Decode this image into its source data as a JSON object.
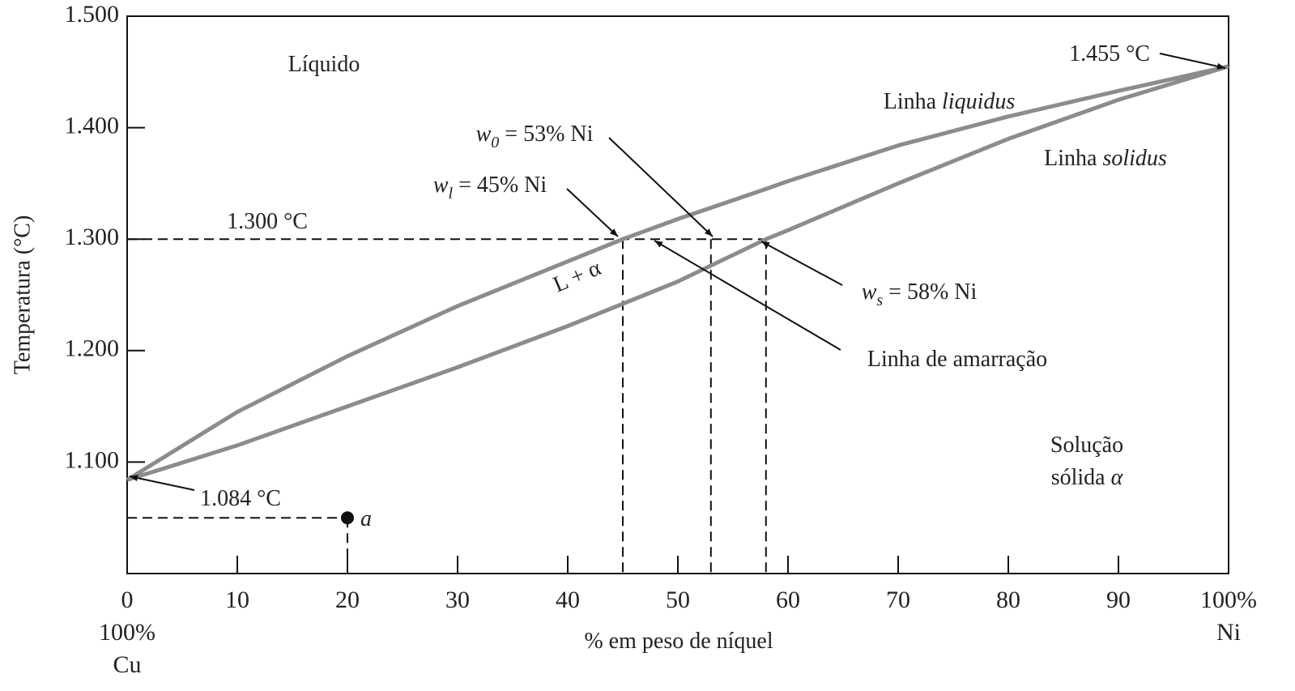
{
  "chart_data": {
    "type": "line",
    "ylabel": "Temperatura (°C)",
    "xlabel": "% em peso de níquel",
    "xlim": [
      0,
      100
    ],
    "ylim": [
      1000,
      1500
    ],
    "xticks": [
      0,
      10,
      20,
      30,
      40,
      50,
      60,
      70,
      80,
      90,
      {
        "value": 100,
        "label": "100%"
      }
    ],
    "yticks": [
      {
        "value": 1100,
        "label": "1.100"
      },
      {
        "value": 1200,
        "label": "1.200"
      },
      {
        "value": 1300,
        "label": "1.300"
      },
      {
        "value": 1400,
        "label": "1.400"
      },
      {
        "value": 1500,
        "label": "1.500"
      }
    ],
    "left_end_label": [
      "100%",
      "Cu"
    ],
    "right_end_label": "Ni",
    "x": [
      0,
      10,
      20,
      30,
      40,
      45,
      50,
      58,
      60,
      70,
      80,
      90,
      100
    ],
    "series": [
      {
        "name": "liquidus",
        "color": "#8c8c8c",
        "values": [
          1084,
          1145,
          1195,
          1240,
          1280,
          1300,
          1318,
          1345,
          1352,
          1384,
          1410,
          1433,
          1455
        ]
      },
      {
        "name": "solidus",
        "color": "#8c8c8c",
        "values": [
          1084,
          1115,
          1150,
          1185,
          1222,
          1242,
          1262,
          1300,
          1308,
          1350,
          1390,
          1425,
          1455
        ]
      }
    ],
    "tie_line": {
      "temperature": 1300,
      "compositions": [
        45,
        53,
        58
      ]
    },
    "point": {
      "label": "a",
      "x": 20,
      "y": 1050
    },
    "annotations": {
      "liquid": "Líquido",
      "t_max": "1.455 °C",
      "liquidus_label": [
        "Linha ",
        "liquidus"
      ],
      "solidus_label": [
        "Linha ",
        "solidus"
      ],
      "w0": [
        "w",
        "0",
        " = 53% Ni"
      ],
      "wl": [
        "w",
        "l",
        " = 45% Ni"
      ],
      "t_tie": "1.300 °C",
      "two_phase": "L + α",
      "ws": [
        "w",
        "s",
        " = 58% Ni"
      ],
      "tie_label": "Linha de amarração",
      "t_min": "1.084 °C",
      "solid": [
        "Solução",
        "sólida ",
        "α"
      ]
    }
  }
}
